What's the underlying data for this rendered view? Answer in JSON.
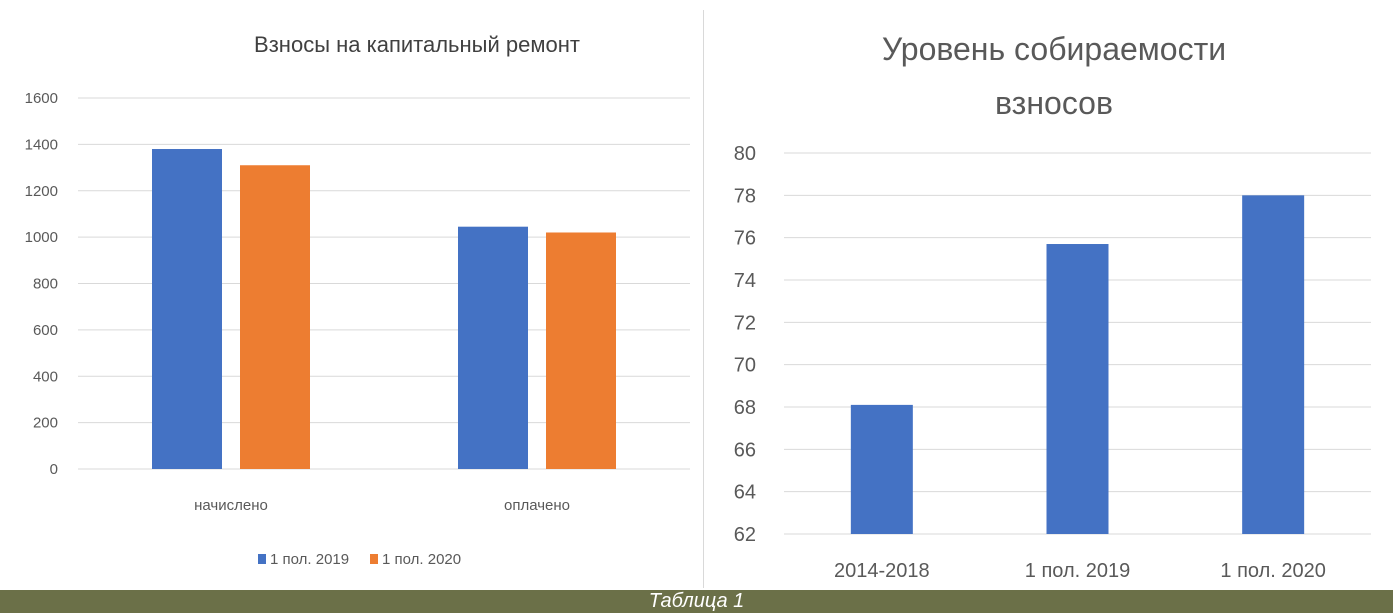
{
  "chart_data": [
    {
      "type": "bar",
      "title": "Взносы на капитальный ремонт",
      "categories": [
        "начислено",
        "оплачено"
      ],
      "series": [
        {
          "name": "1 пол. 2019",
          "values": [
            1380,
            1045
          ],
          "color": "#4472c4"
        },
        {
          "name": "1 пол. 2020",
          "values": [
            1310,
            1020
          ],
          "color": "#ed7d31"
        }
      ],
      "yticks": [
        "0",
        "200",
        "400",
        "600",
        "800",
        "1000",
        "1200",
        "1400",
        "1600"
      ],
      "ylim": [
        0,
        1600
      ],
      "grid": true,
      "legend": "bottom"
    },
    {
      "type": "bar",
      "title_lines": [
        "Уровень собираемости",
        "взносов"
      ],
      "categories": [
        "2014-2018",
        "1 пол. 2019",
        "1 пол. 2020"
      ],
      "series": [
        {
          "values": [
            68.1,
            75.7,
            78
          ],
          "color": "#4472c4"
        }
      ],
      "yticks": [
        "62",
        "64",
        "66",
        "68",
        "70",
        "72",
        "74",
        "76",
        "78",
        "80"
      ],
      "ylim": [
        62,
        80
      ],
      "grid": true,
      "legend": "none"
    }
  ],
  "caption": "Таблица 1"
}
